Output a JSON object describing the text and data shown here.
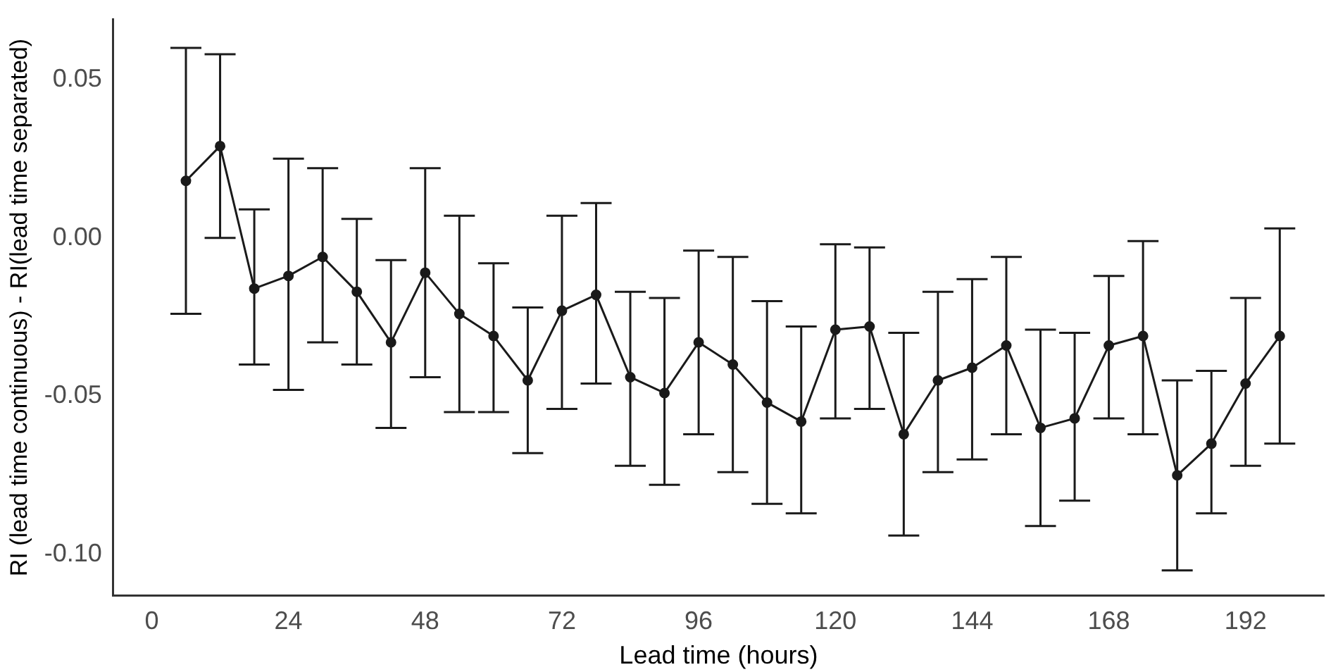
{
  "chart_data": {
    "type": "line",
    "xlabel": "Lead time (hours)",
    "ylabel": "RI (lead time continuous) - RI(lead time separated)",
    "x": [
      6,
      12,
      18,
      24,
      30,
      36,
      42,
      48,
      54,
      60,
      66,
      72,
      78,
      84,
      90,
      96,
      102,
      108,
      114,
      120,
      126,
      132,
      138,
      144,
      150,
      156,
      162,
      168,
      174,
      180,
      186,
      192,
      198
    ],
    "series": [
      {
        "color": "#1a1a1a",
        "values": [
          0.018,
          0.029,
          -0.016,
          -0.012,
          -0.006,
          -0.017,
          -0.033,
          -0.011,
          -0.024,
          -0.031,
          -0.045,
          -0.023,
          -0.018,
          -0.044,
          -0.049,
          -0.033,
          -0.04,
          -0.052,
          -0.058,
          -0.029,
          -0.028,
          -0.062,
          -0.045,
          -0.041,
          -0.034,
          -0.06,
          -0.057,
          -0.034,
          -0.031,
          -0.075,
          -0.065,
          -0.046,
          -0.031
        ],
        "errors": [
          [
            -0.024,
            0.06
          ],
          [
            0.0,
            0.058
          ],
          [
            -0.04,
            0.009
          ],
          [
            -0.048,
            0.025
          ],
          [
            -0.033,
            0.022
          ],
          [
            -0.04,
            0.006
          ],
          [
            -0.06,
            -0.007
          ],
          [
            -0.044,
            0.022
          ],
          [
            -0.055,
            0.007
          ],
          [
            -0.055,
            -0.008
          ],
          [
            -0.068,
            -0.022
          ],
          [
            -0.054,
            0.007
          ],
          [
            -0.046,
            0.011
          ],
          [
            -0.072,
            -0.017
          ],
          [
            -0.078,
            -0.019
          ],
          [
            -0.062,
            -0.004
          ],
          [
            -0.074,
            -0.006
          ],
          [
            -0.084,
            -0.02
          ],
          [
            -0.087,
            -0.028
          ],
          [
            -0.057,
            -0.002
          ],
          [
            -0.054,
            -0.003
          ],
          [
            -0.094,
            -0.03
          ],
          [
            -0.074,
            -0.017
          ],
          [
            -0.07,
            -0.013
          ],
          [
            -0.062,
            -0.006
          ],
          [
            -0.091,
            -0.029
          ],
          [
            -0.083,
            -0.03
          ],
          [
            -0.057,
            -0.012
          ],
          [
            -0.062,
            -0.001
          ],
          [
            -0.105,
            -0.045
          ],
          [
            -0.087,
            -0.042
          ],
          [
            -0.072,
            -0.019
          ],
          [
            -0.065,
            0.003
          ]
        ]
      }
    ],
    "xlim": [
      -6.75,
      205.75
    ],
    "xticks": [
      0,
      24,
      48,
      72,
      96,
      120,
      144,
      168,
      192
    ],
    "ylim": [
      -0.113,
      0.069
    ],
    "yticks": [
      {
        "value": 0.05,
        "label": "0.05"
      },
      {
        "value": 0,
        "label": "0.00"
      },
      {
        "value": -0.05,
        "label": "-0.05"
      },
      {
        "value": -0.1,
        "label": "-0.10"
      }
    ],
    "grid": false,
    "legend": false,
    "marker": "circle",
    "line_style": "solid"
  }
}
